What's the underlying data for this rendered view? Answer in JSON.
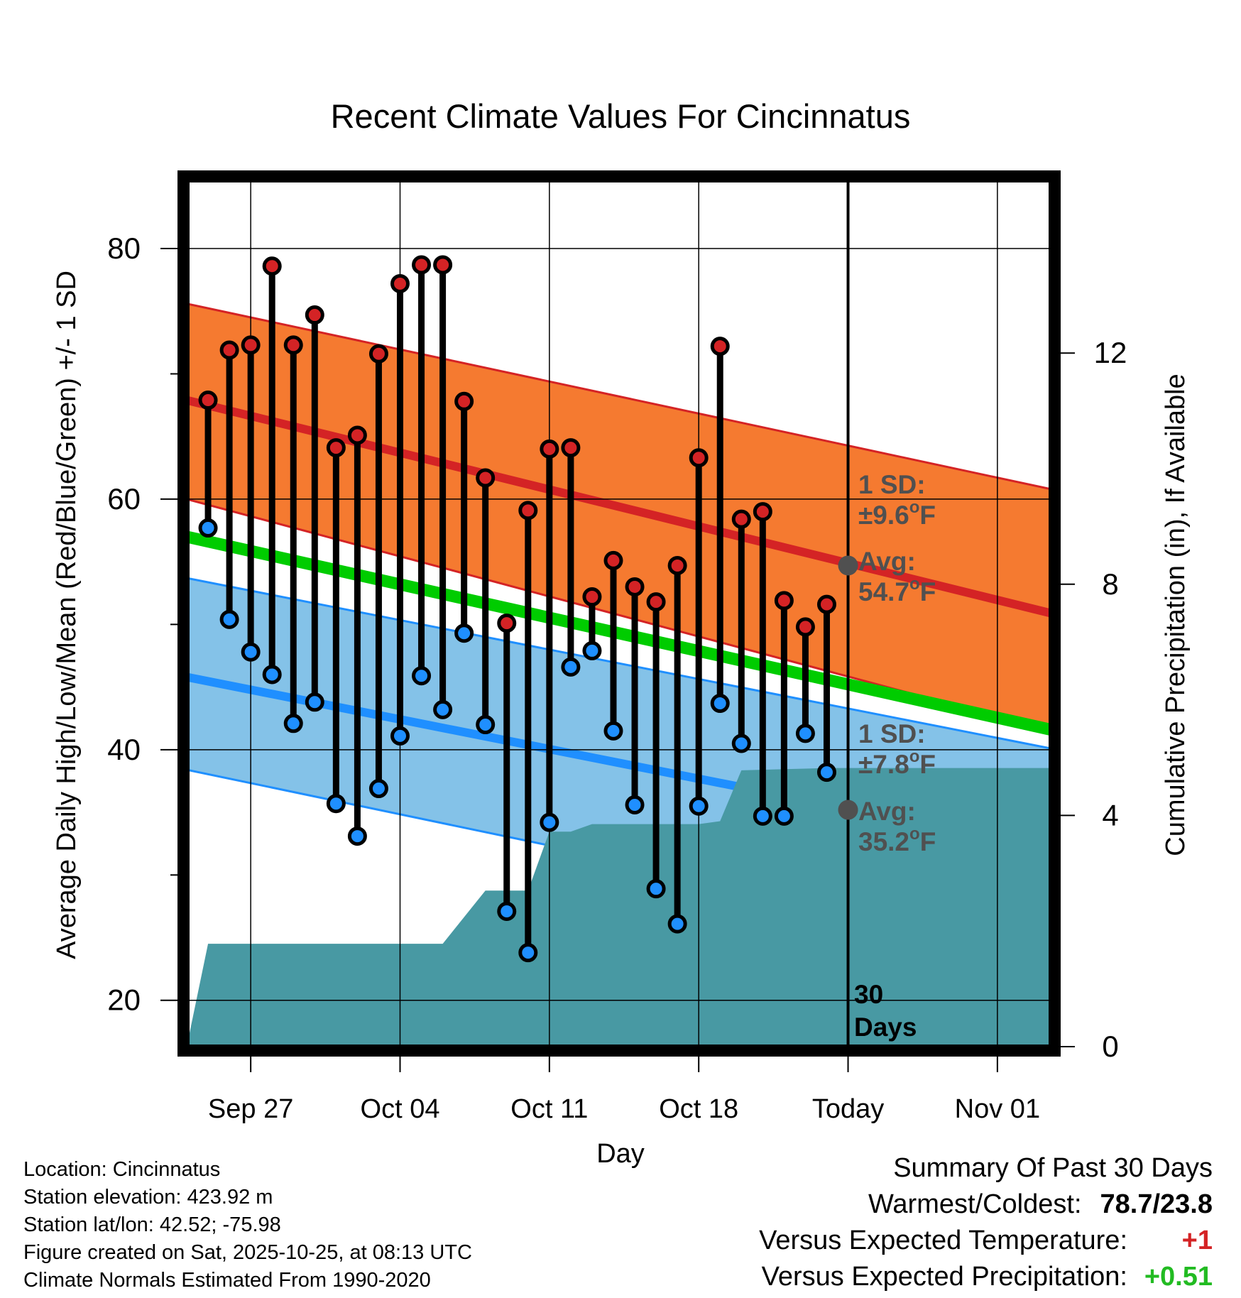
{
  "chart_data": {
    "type": "line",
    "title": "Recent Climate Values For Cincinnatus",
    "xlabel": "Day",
    "ylabel": "Average Daily High/Low/Mean (Red/Blue/Green) +/- 1 SD",
    "y2label": "Cumulative Precipitation (in), If Available",
    "ylim": [
      16.3,
      85.5
    ],
    "y2lim": [
      0,
      15
    ],
    "xlim": [
      -3.0,
      37.5
    ],
    "yticks": [
      20,
      40,
      60,
      80
    ],
    "y2ticks": [
      0,
      4,
      8,
      12
    ],
    "xticks": [
      {
        "day": 0,
        "label": "Sep 27"
      },
      {
        "day": 7,
        "label": "Oct 04"
      },
      {
        "day": 14,
        "label": "Oct 11"
      },
      {
        "day": 21,
        "label": "Oct 18"
      },
      {
        "day": 28,
        "label": "Today"
      },
      {
        "day": 35,
        "label": "Nov 01"
      }
    ],
    "start_date": "Sep 25",
    "daily": {
      "day": [
        -2,
        -1,
        0,
        1,
        2,
        3,
        4,
        5,
        6,
        7,
        8,
        9,
        10,
        11,
        12,
        13,
        14,
        15,
        16,
        17,
        18,
        19,
        20,
        21,
        22,
        23,
        24,
        25,
        26,
        27
      ],
      "high": [
        67.9,
        71.9,
        72.3,
        78.6,
        72.3,
        74.7,
        64.1,
        65.1,
        71.6,
        77.2,
        78.7,
        78.7,
        67.8,
        61.7,
        50.1,
        59.1,
        64.0,
        64.1,
        52.2,
        55.1,
        53.0,
        51.8,
        54.7,
        63.3,
        72.2,
        58.4,
        59.0,
        51.9,
        49.8,
        51.6
      ],
      "low": [
        57.7,
        50.4,
        47.8,
        46.0,
        42.1,
        43.8,
        35.7,
        33.1,
        36.9,
        41.1,
        45.9,
        43.2,
        49.3,
        42.0,
        27.1,
        23.8,
        34.2,
        46.6,
        47.9,
        41.5,
        35.6,
        28.9,
        26.1,
        35.5,
        43.7,
        40.5,
        34.7,
        34.7,
        41.3,
        38.2
      ]
    },
    "normals": {
      "x": [
        -3.0,
        37.5
      ],
      "mean_high": [
        67.9,
        50.9
      ],
      "high_sd_upper": [
        75.6,
        60.8
      ],
      "high_sd_lower": [
        60.0,
        41.5
      ],
      "mean_low": [
        45.8,
        32.1
      ],
      "low_sd_upper": [
        53.7,
        40.1
      ],
      "low_sd_lower": [
        38.4,
        24.0
      ],
      "mean": [
        57.0,
        41.6
      ]
    },
    "precip": {
      "x": [
        -3.0,
        -2.0,
        7.0,
        9.0,
        11.0,
        13.0,
        14.0,
        15.0,
        16.0,
        17.0,
        18.0,
        19.0,
        20.0,
        21.0,
        22.0,
        23.0,
        25.0,
        27.0,
        37.5
      ],
      "y": [
        0.0,
        1.78,
        1.78,
        1.78,
        2.7,
        2.7,
        3.72,
        3.72,
        3.85,
        3.85,
        3.85,
        3.85,
        3.85,
        3.85,
        3.9,
        4.78,
        4.8,
        4.82,
        4.82
      ]
    },
    "today": {
      "day": 28,
      "high_avg": 54.7,
      "low_avg": 35.2,
      "high_sd_label": "1 SD:",
      "high_sd_value": "±9.6°F",
      "high_avg_label": "Avg:",
      "high_avg_value": "54.7°F",
      "low_sd_label": "1 SD:",
      "low_sd_value": "±7.8°F",
      "low_avg_label": "Avg:",
      "low_avg_value": "35.2°F",
      "period_line1": "30",
      "period_line2": "Days"
    },
    "colors": {
      "high_band": "#f57a30",
      "high_line": "#d42325",
      "low_band": "#84c2e8",
      "low_line": "#1f8fff",
      "mean_line": "#00cc00",
      "precip": "#4899a3",
      "high_dot": "#d42325",
      "low_dot": "#1f8fff",
      "annotation": "#505050"
    }
  },
  "footer": {
    "location": "Location: Cincinnatus",
    "elevation": "Station elevation: 423.92 m",
    "latlon": "Station lat/lon: 42.52; -75.98",
    "created": "Figure created on Sat, 2025-10-25, at 08:13 UTC",
    "normals": "Climate Normals Estimated From 1990-2020"
  },
  "summary": {
    "heading": "Summary Of Past 30 Days",
    "warmest_label": "Warmest/Coldest:",
    "warmest_value": "78.7/23.8",
    "temp_label": "Versus Expected Temperature:",
    "temp_value": "+1",
    "temp_color": "#d42325",
    "precip_label": "Versus Expected Precipitation:",
    "precip_value": "+0.51",
    "precip_color": "#22bb22"
  }
}
